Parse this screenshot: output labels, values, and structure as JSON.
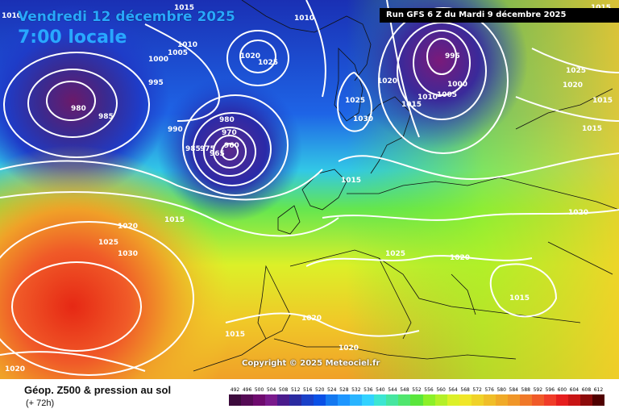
{
  "header": {
    "title": "Vendredi 12 décembre 2025",
    "local_time": "7:00 locale",
    "run_info": "Run GFS 6 Z du Mardi 9 décembre 2025"
  },
  "copyright": "Copyright © 2025 Meteociel.fr",
  "footer": {
    "product_label": "Géop. Z500 & pression au sol",
    "forecast_hour": "(+ 72h)"
  },
  "scale": {
    "values": [
      "492",
      "496",
      "500",
      "504",
      "508",
      "512",
      "516",
      "520",
      "524",
      "528",
      "532",
      "536",
      "540",
      "544",
      "548",
      "552",
      "556",
      "560",
      "564",
      "568",
      "572",
      "576",
      "580",
      "584",
      "588",
      "592",
      "596",
      "600",
      "604",
      "608",
      "612"
    ],
    "colors": [
      "#3c0a3c",
      "#550a55",
      "#6e0a6e",
      "#7a1a8c",
      "#4a1a8c",
      "#2a2aa0",
      "#1a40c8",
      "#0a50e6",
      "#1478f0",
      "#1e96ff",
      "#28b4ff",
      "#32d2ff",
      "#3ce6d2",
      "#46e6a0",
      "#50e66e",
      "#5ae63c",
      "#8cf028",
      "#b4f028",
      "#dcf028",
      "#f0e628",
      "#f0d228",
      "#f0be28",
      "#f0aa28",
      "#f09628",
      "#f07828",
      "#f05a28",
      "#f03c28",
      "#e61e1e",
      "#c81414",
      "#8c0a0a",
      "#500000"
    ]
  },
  "pressure_labels": [
    {
      "text": "1010",
      "pos": "top-left"
    },
    {
      "text": "1015",
      "pos": "top"
    },
    {
      "text": "1010",
      "pos": "north-atlantic"
    },
    {
      "text": "1005",
      "pos": "north-atlantic"
    },
    {
      "text": "1000",
      "pos": "north-atlantic"
    },
    {
      "text": "995",
      "pos": "west-low"
    },
    {
      "text": "980",
      "pos": "west-low-center"
    },
    {
      "text": "985",
      "pos": "west-low"
    },
    {
      "text": "990",
      "pos": "mid-atlantic"
    },
    {
      "text": "980",
      "pos": "central-low"
    },
    {
      "text": "970",
      "pos": "central-low"
    },
    {
      "text": "985",
      "pos": "central-low"
    },
    {
      "text": "975",
      "pos": "central-low"
    },
    {
      "text": "965",
      "pos": "central-low-center"
    },
    {
      "text": "960",
      "pos": "central-low-center"
    },
    {
      "text": "1020",
      "pos": "iceland"
    },
    {
      "text": "1025",
      "pos": "iceland"
    },
    {
      "text": "1010",
      "pos": "iceland-top"
    },
    {
      "text": "1025",
      "pos": "norway"
    },
    {
      "text": "1030",
      "pos": "norway"
    },
    {
      "text": "1015",
      "pos": "north-sea"
    },
    {
      "text": "1020",
      "pos": "scandinavia"
    },
    {
      "text": "1015",
      "pos": "scandinavia"
    },
    {
      "text": "1010",
      "pos": "scandinavia"
    },
    {
      "text": "1005",
      "pos": "scandinavia"
    },
    {
      "text": "1000",
      "pos": "scandinavia"
    },
    {
      "text": "995",
      "pos": "scandinavia-low"
    },
    {
      "text": "1015",
      "pos": "top-right"
    },
    {
      "text": "1025",
      "pos": "russia"
    },
    {
      "text": "1020",
      "pos": "russia"
    },
    {
      "text": "1015",
      "pos": "russia"
    },
    {
      "text": "1015",
      "pos": "russia"
    },
    {
      "text": "1020",
      "pos": "russia"
    },
    {
      "text": "1015",
      "pos": "atlantic"
    },
    {
      "text": "1020",
      "pos": "atlantic"
    },
    {
      "text": "1025",
      "pos": "atlantic"
    },
    {
      "text": "1030",
      "pos": "azores"
    },
    {
      "text": "1025",
      "pos": "alps"
    },
    {
      "text": "1020",
      "pos": "balkans"
    },
    {
      "text": "1015",
      "pos": "turkey"
    },
    {
      "text": "1020",
      "pos": "iberia"
    },
    {
      "text": "1015",
      "pos": "morocco"
    },
    {
      "text": "1020",
      "pos": "sahara"
    },
    {
      "text": "1020",
      "pos": "bottom-left"
    }
  ]
}
